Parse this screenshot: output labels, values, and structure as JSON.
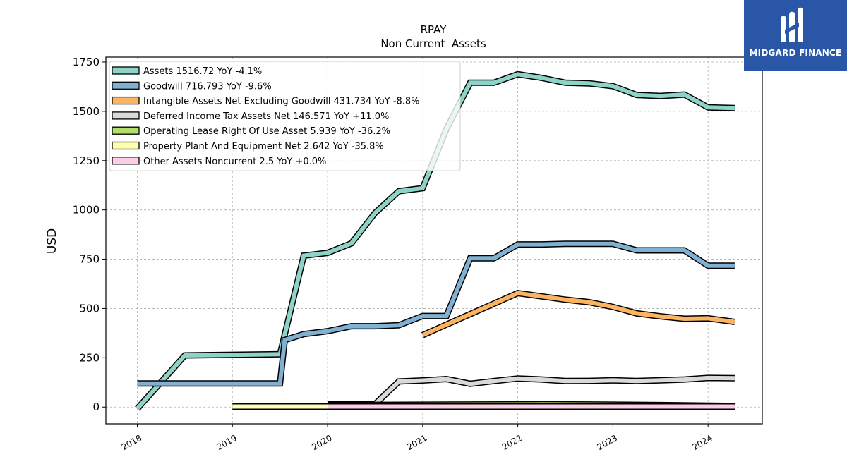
{
  "brand": {
    "name": "MIDGARD FINANCE",
    "logo_icon": "midgard-m-logo-icon",
    "bg_color": "#2a56a8"
  },
  "chart_data": {
    "type": "line",
    "title": "RPAY",
    "subtitle": "Non Current  Assets",
    "xlabel": "",
    "ylabel": "USD",
    "ylim": [
      -85,
      1775
    ],
    "xlim": [
      2017.67,
      2024.57
    ],
    "yticks": [
      0,
      250,
      500,
      750,
      1000,
      1250,
      1500,
      1750
    ],
    "xticks": [
      2018,
      2019,
      2020,
      2021,
      2022,
      2023,
      2024
    ],
    "grid": true,
    "legend_position": "top-left",
    "series": [
      {
        "name": "Assets",
        "legend": "Assets  1516.72 YoY -4.1%",
        "color": "#8dd3c7",
        "points": [
          [
            2018.0,
            -8
          ],
          [
            2018.5,
            262
          ],
          [
            2019.5,
            268
          ],
          [
            2019.75,
            768
          ],
          [
            2020.0,
            782
          ],
          [
            2020.25,
            830
          ],
          [
            2020.5,
            985
          ],
          [
            2020.75,
            1095
          ],
          [
            2021.0,
            1110
          ],
          [
            2021.25,
            1410
          ],
          [
            2021.5,
            1645
          ],
          [
            2021.75,
            1645
          ],
          [
            2022.0,
            1688
          ],
          [
            2022.25,
            1670
          ],
          [
            2022.5,
            1645
          ],
          [
            2022.75,
            1642
          ],
          [
            2023.0,
            1628
          ],
          [
            2023.25,
            1583
          ],
          [
            2023.5,
            1578
          ],
          [
            2023.75,
            1585
          ],
          [
            2024.0,
            1520
          ],
          [
            2024.28,
            1516.72
          ]
        ]
      },
      {
        "name": "Goodwill",
        "legend": "Goodwill  716.793 YoY -9.6%",
        "color": "#80b1d3",
        "points": [
          [
            2018.0,
            120
          ],
          [
            2019.5,
            120
          ],
          [
            2019.55,
            340
          ],
          [
            2019.75,
            370
          ],
          [
            2020.0,
            385
          ],
          [
            2020.25,
            410
          ],
          [
            2020.5,
            410
          ],
          [
            2020.75,
            415
          ],
          [
            2021.0,
            462
          ],
          [
            2021.25,
            462
          ],
          [
            2021.5,
            755
          ],
          [
            2021.75,
            755
          ],
          [
            2022.0,
            825
          ],
          [
            2022.25,
            825
          ],
          [
            2022.5,
            828
          ],
          [
            2022.75,
            828
          ],
          [
            2023.0,
            828
          ],
          [
            2023.25,
            795
          ],
          [
            2023.5,
            795
          ],
          [
            2023.75,
            795
          ],
          [
            2024.0,
            716.793
          ],
          [
            2024.28,
            716.793
          ]
        ]
      },
      {
        "name": "Intangible Assets Net Excluding Goodwill",
        "legend": "Intangible Assets Net Excluding Goodwill  431.734 YoY -8.8%",
        "color": "#fdb462",
        "points": [
          [
            2021.0,
            365
          ],
          [
            2022.0,
            578
          ],
          [
            2022.5,
            545
          ],
          [
            2022.75,
            532
          ],
          [
            2023.0,
            508
          ],
          [
            2023.25,
            475
          ],
          [
            2023.5,
            460
          ],
          [
            2023.75,
            448
          ],
          [
            2024.0,
            450
          ],
          [
            2024.28,
            431.734
          ]
        ]
      },
      {
        "name": "Deferred Income Tax Assets Net",
        "legend": "Deferred Income Tax Assets Net  146.571 YoY +11.0%",
        "color": "#d9d9d9",
        "points": [
          [
            2020.0,
            15
          ],
          [
            2020.5,
            15
          ],
          [
            2020.75,
            130
          ],
          [
            2021.0,
            135
          ],
          [
            2021.25,
            142
          ],
          [
            2021.5,
            118
          ],
          [
            2021.75,
            132
          ],
          [
            2022.0,
            145
          ],
          [
            2022.25,
            140
          ],
          [
            2022.5,
            132
          ],
          [
            2022.75,
            133
          ],
          [
            2023.0,
            136
          ],
          [
            2023.25,
            132
          ],
          [
            2023.5,
            136
          ],
          [
            2023.75,
            140
          ],
          [
            2024.0,
            148
          ],
          [
            2024.28,
            146.571
          ]
        ]
      },
      {
        "name": "Operating Lease Right Of Use Asset",
        "legend": "Operating Lease Right Of Use Asset  5.939 YoY -36.2%",
        "color": "#b3de69",
        "points": [
          [
            2020.0,
            10
          ],
          [
            2022.25,
            14
          ],
          [
            2022.75,
            13
          ],
          [
            2023.5,
            10
          ],
          [
            2024.28,
            5.939
          ]
        ]
      },
      {
        "name": "Property Plant And Equipment Net",
        "legend": "Property Plant And Equipment Net  2.642 YoY -35.8%",
        "color": "#ffffb3",
        "points": [
          [
            2019.0,
            2.5
          ],
          [
            2020.0,
            2.6
          ],
          [
            2021.0,
            3.0
          ],
          [
            2022.0,
            4.0
          ],
          [
            2023.0,
            4.0
          ],
          [
            2024.28,
            2.642
          ]
        ]
      },
      {
        "name": "Other Assets Noncurrent",
        "legend": "Other Assets Noncurrent  2.5 YoY +0.0%",
        "color": "#fccde5",
        "points": [
          [
            2020.0,
            2.5
          ],
          [
            2024.28,
            2.5
          ]
        ]
      }
    ]
  }
}
